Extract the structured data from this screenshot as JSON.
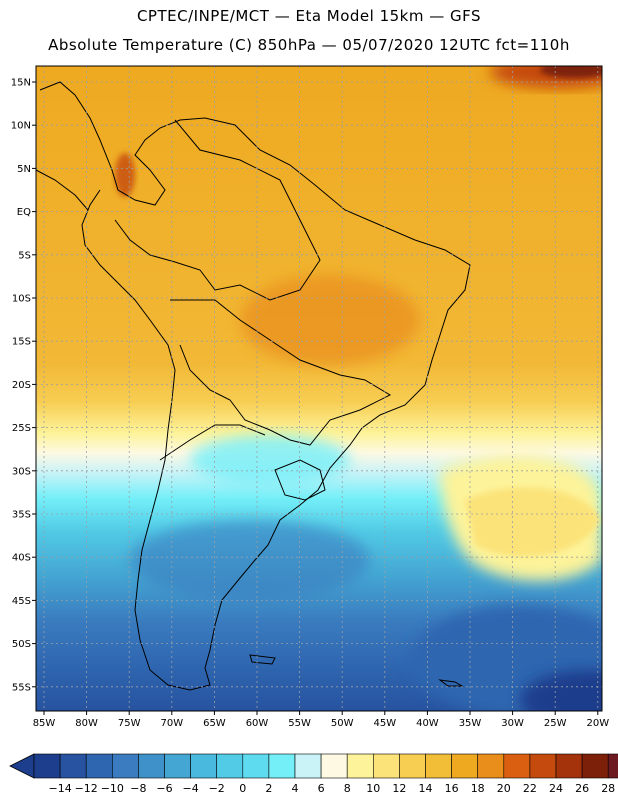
{
  "header": {
    "title_line1": "CPTEC/INPE/MCT —  Eta Model 15km — GFS",
    "title_line2": "Absolute Temperature (C) 850hPa — 05/07/2020 12UTC fct=110h"
  },
  "map": {
    "lat_labels": [
      "15N",
      "10N",
      "5N",
      "EQ",
      "5S",
      "10S",
      "15S",
      "20S",
      "25S",
      "30S",
      "35S",
      "40S",
      "45S",
      "50S",
      "55S"
    ],
    "lon_labels": [
      "85W",
      "80W",
      "75W",
      "70W",
      "65W",
      "60W",
      "55W",
      "50W",
      "45W",
      "40W",
      "35W",
      "30W",
      "25W",
      "20W"
    ],
    "grid": "dotted"
  },
  "colorbar": {
    "labels": [
      "-14",
      "-12",
      "-10",
      "-8",
      "-6",
      "-4",
      "-2",
      "0",
      "2",
      "4",
      "6",
      "8",
      "10",
      "12",
      "14",
      "16",
      "18",
      "20",
      "22",
      "24",
      "26",
      "28"
    ],
    "colors": [
      "#1d3e8c",
      "#2753a0",
      "#2f66b0",
      "#3a7cbf",
      "#3f92c9",
      "#44a6d3",
      "#4ab9de",
      "#52cbe6",
      "#5fdbef",
      "#74eff8",
      "#c9f3f7",
      "#fdf9e3",
      "#fdf39a",
      "#fbe379",
      "#f7cd52",
      "#f2bd37",
      "#eea920",
      "#e98d1b",
      "#db5f10",
      "#c54a0d",
      "#a4330b",
      "#7d2009",
      "#6e1a22"
    ]
  },
  "regions": {
    "land": "South America",
    "ocean_colors": {
      "warm": "#eea920",
      "cold": "#3a7cbf"
    }
  }
}
